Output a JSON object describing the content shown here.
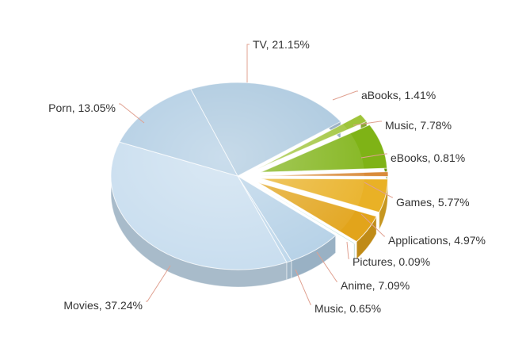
{
  "chart_data": {
    "type": "pie",
    "style": "3d-exploded",
    "title": "",
    "slices": [
      {
        "label": "TV, 21.15%",
        "name": "TV",
        "value": 21.15,
        "color": "#a8c6dd",
        "exploded": false
      },
      {
        "label": "aBooks, 1.41%",
        "name": "aBooks",
        "value": 1.41,
        "color": "#9fc43a",
        "exploded": true
      },
      {
        "label": "Music, 7.78%",
        "name": "Music",
        "value": 7.78,
        "color": "#7fb316",
        "exploded": true
      },
      {
        "label": "eBooks, 0.81%",
        "name": "eBooks",
        "value": 0.81,
        "color": "#d98b3a",
        "exploded": true
      },
      {
        "label": "Games, 5.77%",
        "name": "Games",
        "value": 5.77,
        "color": "#e9b126",
        "exploded": true
      },
      {
        "label": "Applications, 4.97%",
        "name": "Applications",
        "value": 4.97,
        "color": "#e2a41b",
        "exploded": true
      },
      {
        "label": "Pictures, 0.09%",
        "name": "Pictures",
        "value": 0.09,
        "color": "#3fa98c",
        "exploded": true
      },
      {
        "label": "Anime, 7.09%",
        "name": "Anime",
        "value": 7.09,
        "color": "#b4d0e6",
        "exploded": false
      },
      {
        "label": "Music, 0.65%",
        "name": "Music",
        "value": 0.65,
        "color": "#bcd6ea",
        "exploded": false
      },
      {
        "label": "Movies, 37.24%",
        "name": "Movies",
        "value": 37.24,
        "color": "#c6dcee",
        "exploded": false
      },
      {
        "label": "Porn, 13.05%",
        "name": "Porn",
        "value": 13.05,
        "color": "#aecbe2",
        "exploded": false
      }
    ]
  }
}
